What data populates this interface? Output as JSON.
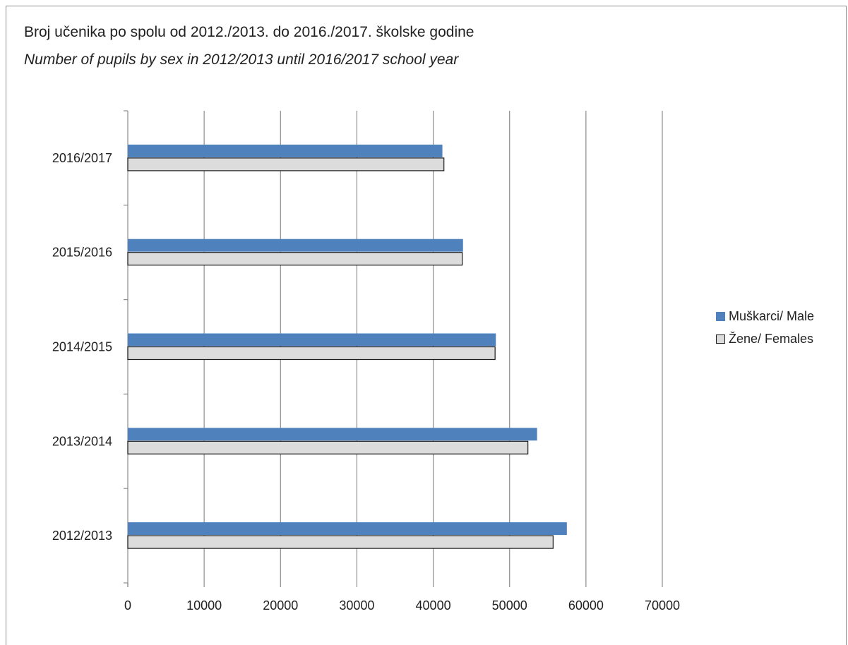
{
  "chart_data": {
    "type": "bar",
    "orientation": "horizontal",
    "title": "Broj učenika po spolu od 2012./2013. do 2016./2017. školske godine",
    "subtitle": "Number of pupils by sex in 2012/2013 until 2016/2017 school year",
    "categories": [
      "2016/2017",
      "2015/2016",
      "2014/2015",
      "2013/2014",
      "2012/2013"
    ],
    "series": [
      {
        "name": "Muškarci/ Male",
        "color": "#4f81bd",
        "values": [
          41200,
          43900,
          48200,
          53600,
          57500
        ]
      },
      {
        "name": "Žene/ Females",
        "color": "#dcdcdc",
        "values": [
          41400,
          43800,
          48100,
          52400,
          55700
        ]
      }
    ],
    "xlim": [
      0,
      70000
    ],
    "xticks": [
      "0",
      "10000",
      "20000",
      "30000",
      "40000",
      "50000",
      "60000",
      "70000"
    ],
    "grid": true,
    "legend_position": "right"
  }
}
